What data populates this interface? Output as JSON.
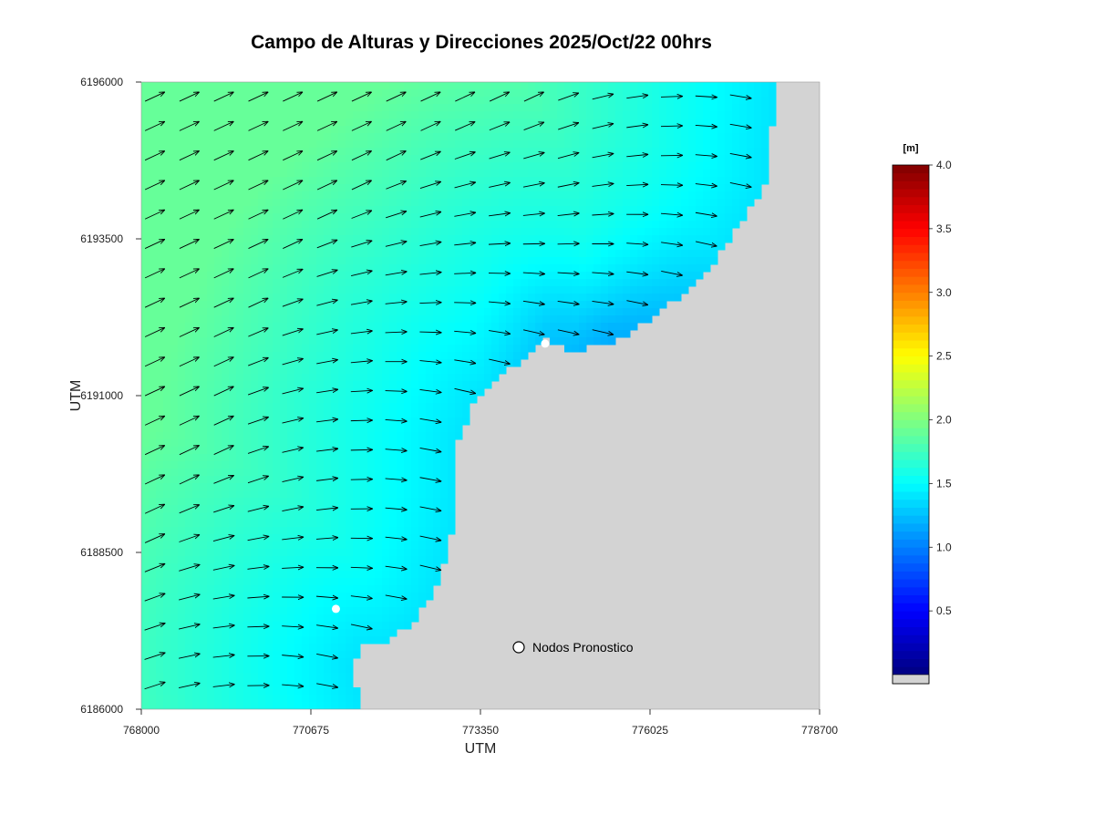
{
  "chart_data": {
    "type": "heatmap",
    "title": "Campo de Alturas y Direcciones 2025/Oct/22  00hrs",
    "xlabel": "UTM",
    "ylabel": "UTM",
    "xlim": [
      768000,
      778700
    ],
    "ylim": [
      6186000,
      6196000
    ],
    "x_ticks": [
      "768000",
      "770675",
      "773350",
      "776025",
      "778700"
    ],
    "y_ticks": [
      "6186000",
      "6188500",
      "6191000",
      "6193500",
      "6196000"
    ],
    "colorbar": {
      "unit": "[m]",
      "range": [
        0,
        4.0
      ],
      "ticks": [
        "0.5",
        "1.0",
        "1.5",
        "2.0",
        "2.5",
        "3.0",
        "3.5",
        "4.0"
      ],
      "colormap": "jet"
    },
    "colors": {
      "land": "#d3d3d3",
      "arrow": "#000000"
    },
    "height_field_description_values": {
      "offshore_west": 1.9,
      "nearshore_north_bay": 1.4,
      "bay_minimum": 1.15
    },
    "coastline": [
      [
        778000,
        6196000
      ],
      [
        777950,
        6195300
      ],
      [
        777850,
        6194400
      ],
      [
        777500,
        6193800
      ],
      [
        777000,
        6193100
      ],
      [
        776400,
        6192500
      ],
      [
        775600,
        6191900
      ],
      [
        774800,
        6191700
      ],
      [
        774400,
        6191900
      ],
      [
        773800,
        6191400
      ],
      [
        773300,
        6191000
      ],
      [
        773000,
        6190300
      ],
      [
        773000,
        6189400
      ],
      [
        772900,
        6188800
      ],
      [
        772600,
        6187800
      ],
      [
        772300,
        6187400
      ],
      [
        771900,
        6187100
      ],
      [
        771500,
        6187000
      ],
      [
        771300,
        6186700
      ],
      [
        771500,
        6186000
      ]
    ],
    "wave_direction_deg_from_east_offshore": 25,
    "wave_direction_deg_from_east_nearshore": -15,
    "forecast_nodes": [
      {
        "x": 774370,
        "y": 6191830
      },
      {
        "x": 771070,
        "y": 6187600
      }
    ],
    "legend": {
      "label": "Nodos Pronostico"
    }
  }
}
